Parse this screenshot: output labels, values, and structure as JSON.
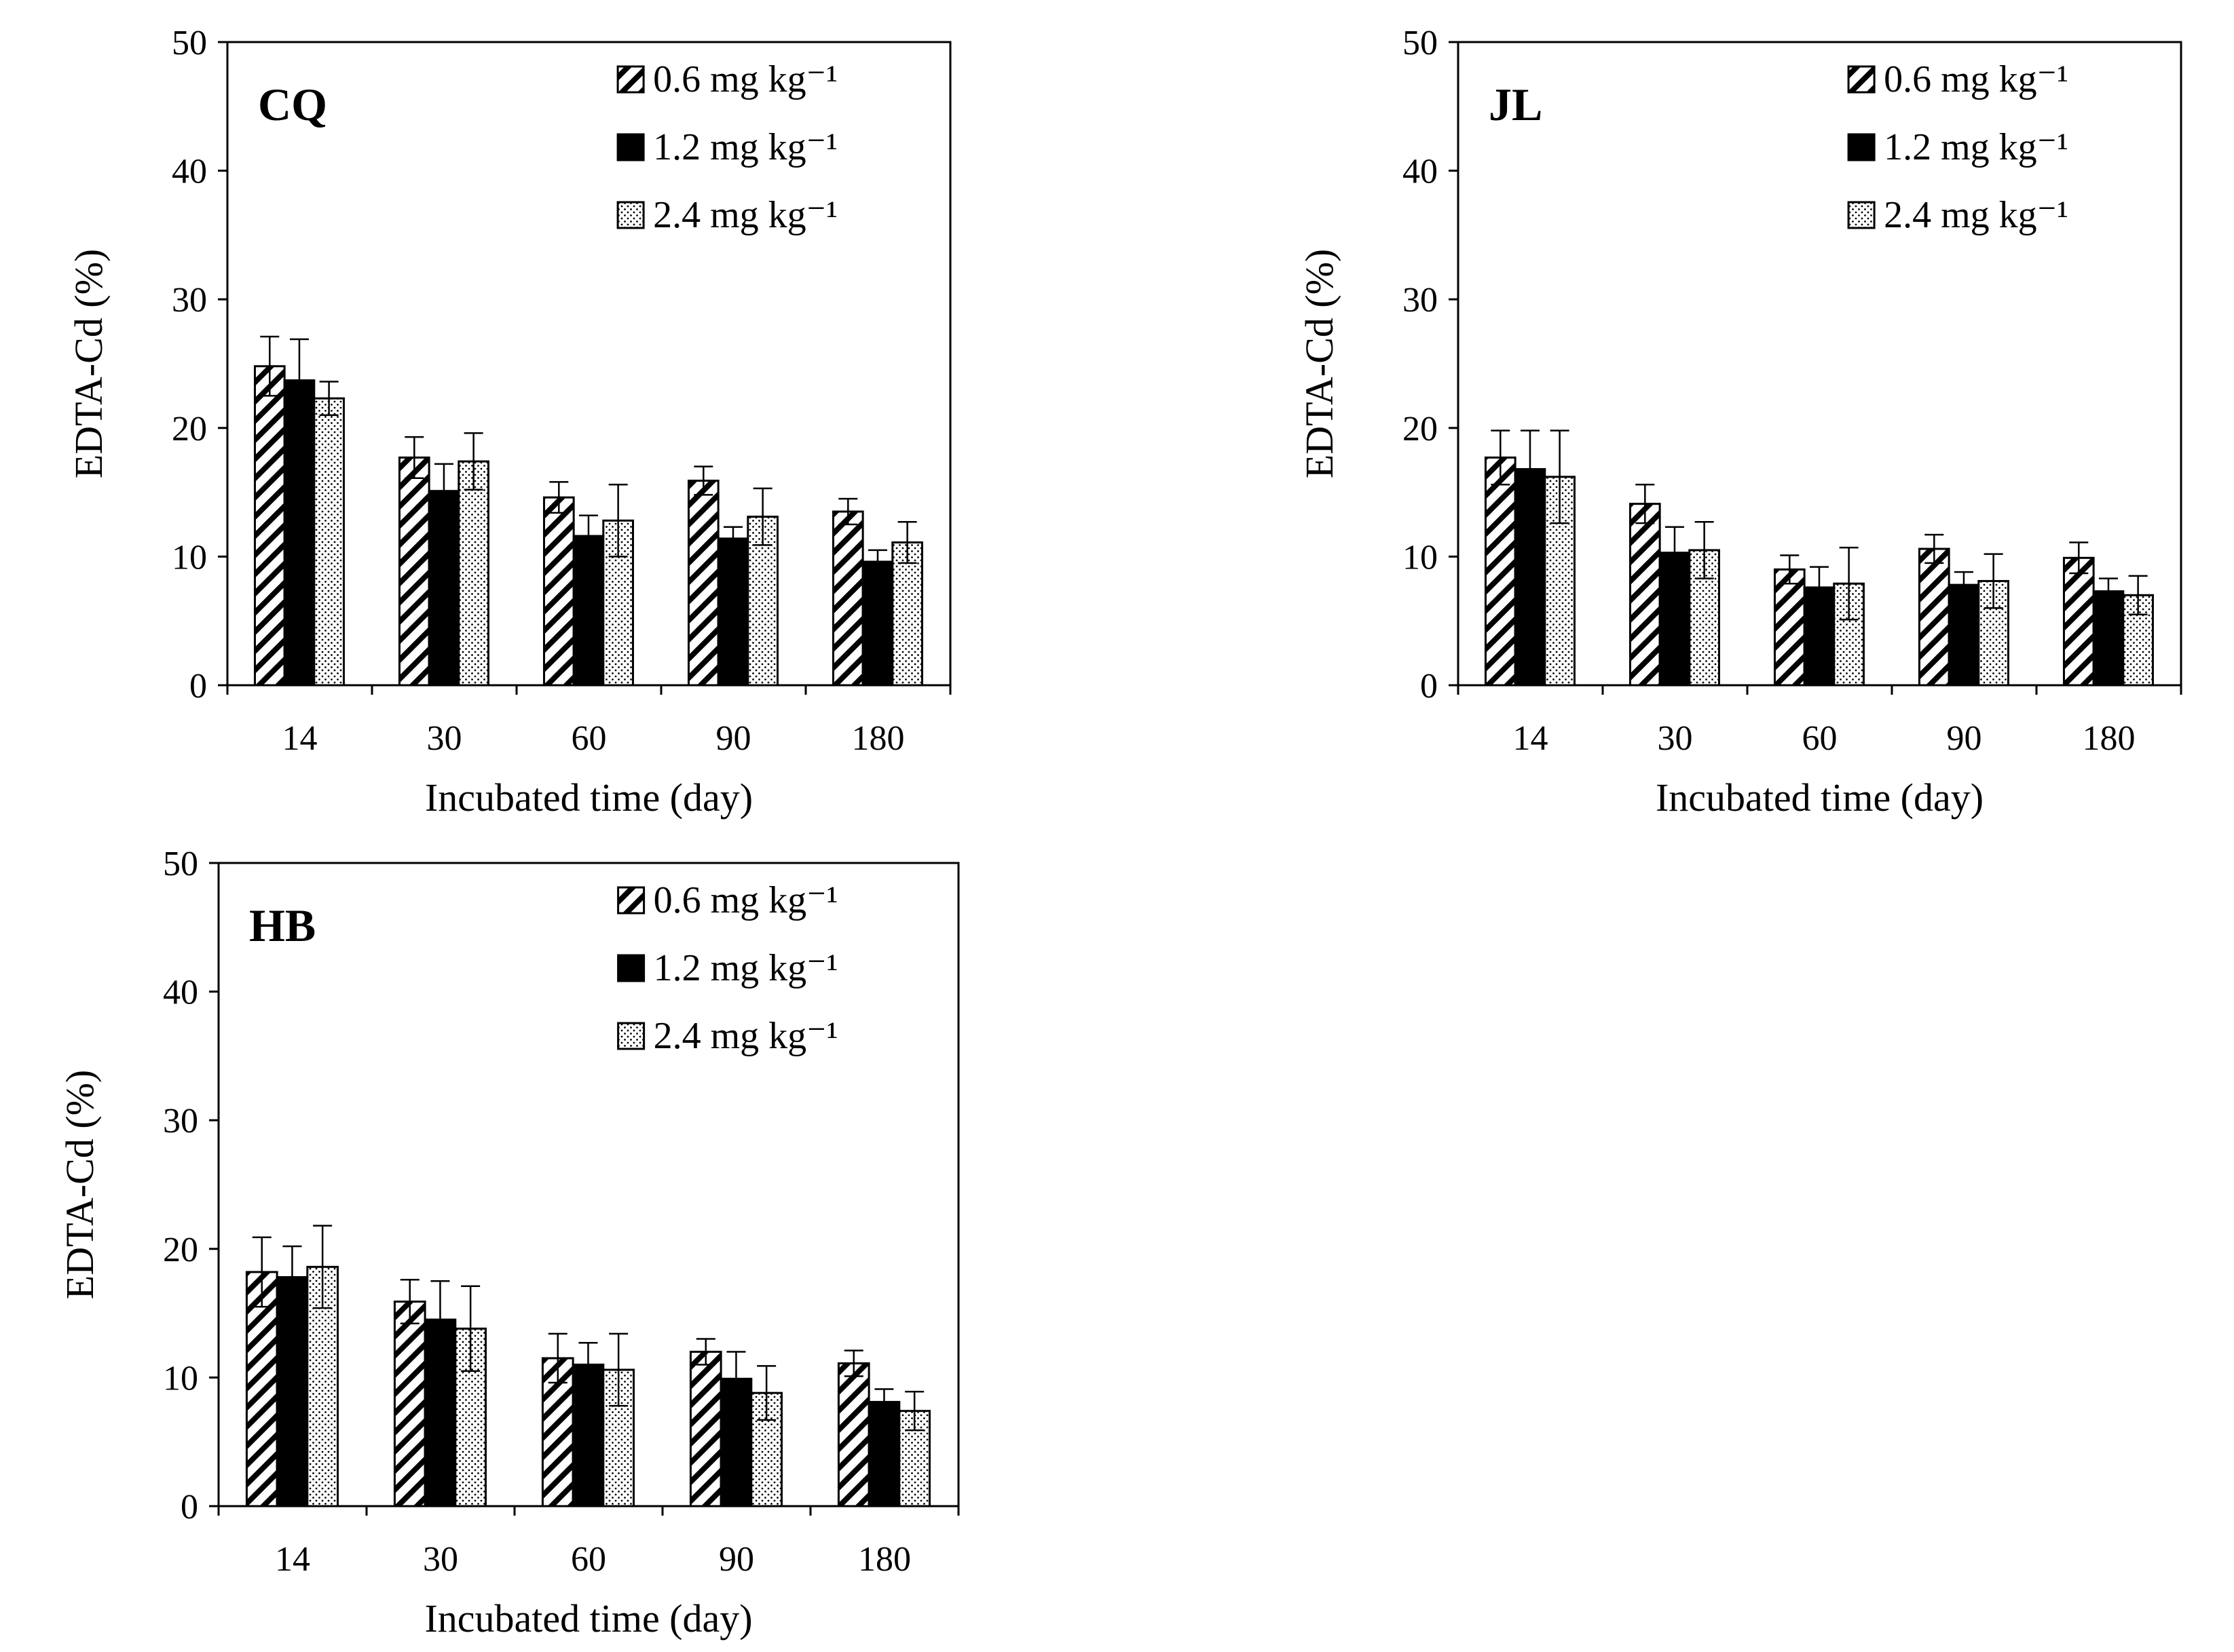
{
  "colors": {
    "bar_solid": "#000000",
    "bar_pattern_bg": "#ffffff",
    "axis": "#000000"
  },
  "chart_data": [
    {
      "type": "bar",
      "panel_label": "CQ",
      "categories": [
        "14",
        "30",
        "60",
        "90",
        "180"
      ],
      "xlabel": "Incubated time (day)",
      "ylabel": "EDTA-Cd (%)",
      "ylim": [
        0,
        50
      ],
      "yticks": [
        "0",
        "10",
        "20",
        "30",
        "40",
        "50"
      ],
      "legend_position": "top-right",
      "series": [
        {
          "name": "0.6 mg kg⁻¹",
          "pattern": "hatch",
          "values": [
            24.8,
            17.7,
            14.6,
            15.9,
            13.5
          ],
          "errors": [
            2.3,
            1.6,
            1.2,
            1.1,
            1.0
          ]
        },
        {
          "name": "1.2 mg kg⁻¹",
          "pattern": "solid",
          "values": [
            23.7,
            15.1,
            11.6,
            11.4,
            9.6
          ],
          "errors": [
            3.2,
            2.1,
            1.6,
            0.9,
            0.9
          ]
        },
        {
          "name": "2.4 mg kg⁻¹",
          "pattern": "dots",
          "values": [
            22.3,
            17.4,
            12.8,
            13.1,
            11.1
          ],
          "errors": [
            1.3,
            2.2,
            2.8,
            2.2,
            1.6
          ]
        }
      ]
    },
    {
      "type": "bar",
      "panel_label": "JL",
      "categories": [
        "14",
        "30",
        "60",
        "90",
        "180"
      ],
      "xlabel": "Incubated time (day)",
      "ylabel": "EDTA-Cd (%)",
      "ylim": [
        0,
        50
      ],
      "yticks": [
        "0",
        "10",
        "20",
        "30",
        "40",
        "50"
      ],
      "legend_position": "top-right",
      "series": [
        {
          "name": "0.6 mg kg⁻¹",
          "pattern": "hatch",
          "values": [
            17.7,
            14.1,
            9.0,
            10.6,
            9.9
          ],
          "errors": [
            2.1,
            1.5,
            1.1,
            1.1,
            1.2
          ]
        },
        {
          "name": "1.2 mg kg⁻¹",
          "pattern": "solid",
          "values": [
            16.8,
            10.3,
            7.6,
            7.8,
            7.3
          ],
          "errors": [
            3.0,
            2.0,
            1.6,
            1.0,
            1.0
          ]
        },
        {
          "name": "2.4 mg kg⁻¹",
          "pattern": "dots",
          "values": [
            16.2,
            10.5,
            7.9,
            8.1,
            7.0
          ],
          "errors": [
            3.6,
            2.2,
            2.8,
            2.1,
            1.5
          ]
        }
      ]
    },
    {
      "type": "bar",
      "panel_label": "HB",
      "categories": [
        "14",
        "30",
        "60",
        "90",
        "180"
      ],
      "xlabel": "Incubated time (day)",
      "ylabel": "EDTA-Cd (%)",
      "ylim": [
        0,
        50
      ],
      "yticks": [
        "0",
        "10",
        "20",
        "30",
        "40",
        "50"
      ],
      "legend_position": "top-right",
      "series": [
        {
          "name": "0.6 mg kg⁻¹",
          "pattern": "hatch",
          "values": [
            18.2,
            15.9,
            11.5,
            12.0,
            11.1
          ],
          "errors": [
            2.7,
            1.7,
            1.9,
            1.0,
            1.0
          ]
        },
        {
          "name": "1.2 mg kg⁻¹",
          "pattern": "solid",
          "values": [
            17.8,
            14.5,
            11.0,
            9.9,
            8.1
          ],
          "errors": [
            2.4,
            3.0,
            1.7,
            2.1,
            1.0
          ]
        },
        {
          "name": "2.4 mg kg⁻¹",
          "pattern": "dots",
          "values": [
            18.6,
            13.8,
            10.6,
            8.8,
            7.4
          ],
          "errors": [
            3.2,
            3.3,
            2.8,
            2.1,
            1.5
          ]
        }
      ]
    }
  ]
}
